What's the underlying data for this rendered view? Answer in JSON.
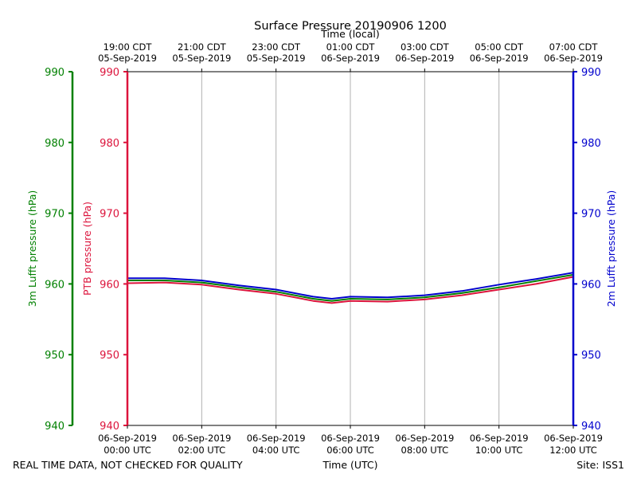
{
  "chart_data": {
    "type": "line",
    "title": "Surface Pressure 20190906 1200",
    "top_axis_label": "Time (local)",
    "bottom_axis_label": "Time (UTC)",
    "footer_left": "REAL TIME DATA, NOT CHECKED FOR QUALITY",
    "footer_right": "Site: ISS1",
    "x_range_hours_utc": [
      0,
      12
    ],
    "ylim": [
      940,
      990
    ],
    "y_ticks": [
      "940",
      "950",
      "960",
      "970",
      "980",
      "990"
    ],
    "axes": [
      {
        "name": "3m Lufft pressure (hPa)",
        "color": "#008000",
        "side": "far-left"
      },
      {
        "name": "PTB pressure (hPa)",
        "color": "#dc143c",
        "side": "left"
      },
      {
        "name": "2m Lufft pressure (hPa)",
        "color": "#0000cd",
        "side": "right"
      }
    ],
    "bottom_ticks": [
      {
        "date": "06-Sep-2019",
        "time": "00:00 UTC"
      },
      {
        "date": "06-Sep-2019",
        "time": "02:00 UTC"
      },
      {
        "date": "06-Sep-2019",
        "time": "04:00 UTC"
      },
      {
        "date": "06-Sep-2019",
        "time": "06:00 UTC"
      },
      {
        "date": "06-Sep-2019",
        "time": "08:00 UTC"
      },
      {
        "date": "06-Sep-2019",
        "time": "10:00 UTC"
      },
      {
        "date": "06-Sep-2019",
        "time": "12:00 UTC"
      }
    ],
    "top_ticks": [
      {
        "time": "19:00 CDT",
        "date": "05-Sep-2019"
      },
      {
        "time": "21:00 CDT",
        "date": "05-Sep-2019"
      },
      {
        "time": "23:00 CDT",
        "date": "05-Sep-2019"
      },
      {
        "time": "01:00 CDT",
        "date": "06-Sep-2019"
      },
      {
        "time": "03:00 CDT",
        "date": "06-Sep-2019"
      },
      {
        "time": "05:00 CDT",
        "date": "06-Sep-2019"
      },
      {
        "time": "07:00 CDT",
        "date": "06-Sep-2019"
      }
    ],
    "x": [
      0,
      1,
      2,
      3,
      4,
      5,
      5.5,
      6,
      7,
      8,
      9,
      10,
      11,
      12
    ],
    "series": [
      {
        "name": "PTB pressure (hPa)",
        "color": "#dc143c",
        "values": [
          960.1,
          960.2,
          959.9,
          959.2,
          958.6,
          957.6,
          957.3,
          957.6,
          957.5,
          957.8,
          958.4,
          959.2,
          960.0,
          961.0
        ]
      },
      {
        "name": "3m Lufft pressure (hPa)",
        "color": "#008000",
        "values": [
          960.5,
          960.5,
          960.2,
          959.5,
          958.9,
          957.9,
          957.6,
          957.9,
          957.8,
          958.1,
          958.7,
          959.5,
          960.4,
          961.3
        ]
      },
      {
        "name": "2m Lufft pressure (hPa)",
        "color": "#0000cd",
        "values": [
          960.8,
          960.8,
          960.5,
          959.8,
          959.2,
          958.2,
          957.9,
          958.2,
          958.1,
          958.4,
          959.0,
          959.9,
          960.7,
          961.6
        ]
      }
    ]
  }
}
